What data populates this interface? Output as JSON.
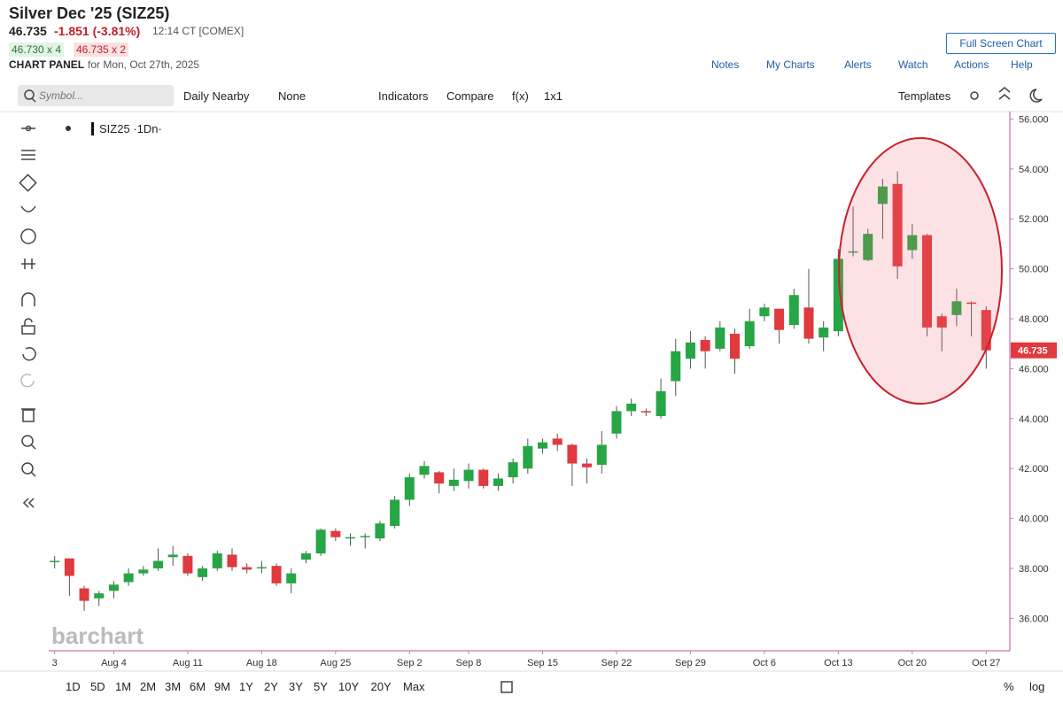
{
  "header": {
    "title": "Silver Dec '25 (SIZ25)",
    "price": "46.735",
    "change": "-1.851 (-3.81%)",
    "time": "12:14 CT [COMEX]",
    "bid": "46.730 x 4",
    "ask": "46.735 x 2",
    "panel": "CHART PANEL",
    "date": "for Mon, Oct 27th, 2025",
    "full_screen": "Full Screen Chart",
    "links": [
      "Notes",
      "My Charts",
      "Alerts",
      "Watch",
      "Actions",
      "Help"
    ]
  },
  "toolbar": {
    "search": "Symbol...",
    "items": [
      "Daily Nearby",
      "None",
      "Indicators",
      "Compare",
      "f(x)",
      "1x1"
    ],
    "templates": "Templates"
  },
  "chart_data": {
    "type": "candlestick",
    "legend": "SIZ25 ·1Dn·",
    "watermark": "barchart",
    "up_color": "#26a644",
    "down_color": "#e0393e",
    "x": [
      0,
      1,
      2,
      3,
      4,
      5,
      6,
      7,
      8,
      9,
      10,
      11,
      12,
      13,
      14,
      15,
      16,
      17,
      18,
      19,
      20,
      21,
      22,
      23,
      24,
      25,
      26,
      27,
      28,
      29,
      30,
      31,
      32,
      33,
      34,
      35,
      36,
      37,
      38,
      39,
      40,
      41,
      42,
      43,
      44,
      45,
      46,
      47,
      48,
      49,
      50,
      51,
      52,
      53,
      54,
      55,
      56,
      57,
      58,
      59,
      60,
      61,
      62,
      63
    ],
    "open": [
      38.3,
      38.4,
      37.2,
      36.8,
      37.1,
      37.45,
      37.8,
      38.0,
      38.45,
      38.5,
      37.65,
      38.0,
      38.55,
      38.05,
      38.05,
      38.1,
      37.4,
      38.35,
      38.6,
      39.5,
      39.2,
      39.3,
      39.2,
      39.7,
      40.75,
      41.75,
      41.85,
      41.3,
      41.5,
      41.95,
      41.3,
      41.65,
      42.0,
      42.8,
      43.2,
      42.95,
      42.2,
      42.15,
      43.4,
      44.3,
      44.3,
      44.1,
      45.5,
      46.4,
      47.15,
      46.8,
      47.4,
      46.9,
      48.1,
      48.4,
      47.75,
      48.45,
      47.25,
      47.5,
      50.65,
      50.35,
      52.6,
      53.4,
      50.75,
      51.35,
      48.1,
      48.15,
      48.65,
      48.35
    ],
    "high": [
      38.5,
      38.4,
      37.3,
      37.1,
      37.5,
      38.0,
      38.1,
      38.8,
      38.9,
      38.6,
      38.1,
      38.7,
      38.8,
      38.2,
      38.3,
      38.2,
      38.0,
      38.7,
      39.6,
      39.6,
      39.4,
      39.4,
      39.9,
      40.9,
      41.8,
      42.3,
      41.9,
      42.0,
      42.2,
      42.0,
      41.8,
      42.4,
      43.2,
      43.2,
      43.4,
      43.0,
      42.4,
      43.5,
      44.5,
      44.8,
      44.4,
      45.6,
      47.2,
      47.5,
      47.3,
      47.9,
      47.6,
      48.4,
      48.6,
      48.4,
      49.2,
      50.0,
      47.9,
      50.8,
      52.5,
      51.6,
      53.6,
      53.9,
      51.8,
      51.4,
      48.2,
      49.2,
      48.7,
      48.5
    ],
    "low": [
      38.0,
      36.9,
      36.3,
      36.5,
      36.8,
      37.3,
      37.7,
      37.9,
      38.1,
      37.7,
      37.5,
      37.9,
      37.9,
      37.8,
      37.8,
      37.3,
      37.0,
      38.2,
      38.5,
      39.1,
      38.9,
      38.8,
      39.1,
      39.6,
      40.5,
      41.6,
      41.0,
      41.1,
      41.2,
      41.2,
      41.1,
      41.4,
      41.8,
      42.6,
      42.7,
      41.3,
      41.4,
      41.8,
      43.2,
      44.1,
      44.1,
      44.0,
      44.9,
      46.0,
      46.0,
      46.7,
      45.8,
      46.8,
      47.9,
      47.0,
      47.6,
      47.0,
      46.7,
      47.3,
      50.5,
      50.3,
      51.2,
      49.6,
      50.4,
      47.3,
      46.7,
      47.7,
      47.3,
      46.0
    ],
    "close": [
      38.3,
      37.7,
      36.7,
      37.0,
      37.35,
      37.8,
      37.95,
      38.3,
      38.55,
      37.8,
      38.0,
      38.6,
      38.05,
      37.95,
      38.05,
      37.4,
      37.8,
      38.6,
      39.55,
      39.25,
      39.25,
      39.3,
      39.8,
      40.75,
      41.65,
      42.1,
      41.4,
      41.55,
      41.95,
      41.3,
      41.6,
      42.25,
      42.9,
      43.05,
      42.95,
      42.2,
      42.05,
      42.95,
      44.3,
      44.6,
      44.25,
      45.1,
      46.7,
      47.05,
      46.7,
      47.65,
      46.4,
      47.9,
      48.45,
      47.55,
      48.95,
      47.2,
      47.65,
      50.4,
      50.7,
      51.4,
      53.3,
      50.1,
      51.35,
      47.65,
      47.65,
      48.7,
      48.6,
      46.735
    ],
    "last_price": 46.735,
    "xlim": [
      -0.4,
      64.6
    ],
    "xticks": [
      {
        "value": 0,
        "label": "3"
      },
      {
        "value": 4,
        "label": "Aug 4"
      },
      {
        "value": 9,
        "label": "Aug 11"
      },
      {
        "value": 14,
        "label": "Aug 18"
      },
      {
        "value": 19,
        "label": "Aug 25"
      },
      {
        "value": 24,
        "label": "Sep 2"
      },
      {
        "value": 28,
        "label": "Sep 8"
      },
      {
        "value": 33,
        "label": "Sep 15"
      },
      {
        "value": 38,
        "label": "Sep 22"
      },
      {
        "value": 43,
        "label": "Sep 29"
      },
      {
        "value": 48,
        "label": "Oct 6"
      },
      {
        "value": 53,
        "label": "Oct 13"
      },
      {
        "value": 58,
        "label": "Oct 20"
      },
      {
        "value": 63,
        "label": "Oct 27"
      }
    ],
    "ylim": [
      34.7,
      56.3
    ],
    "yticks": [
      {
        "value": 36,
        "label": "36.000"
      },
      {
        "value": 38,
        "label": "38.000"
      },
      {
        "value": 40,
        "label": "40.000"
      },
      {
        "value": 42,
        "label": "42.000"
      },
      {
        "value": 44,
        "label": "44.000"
      },
      {
        "value": 46,
        "label": "46.000"
      },
      {
        "value": 48,
        "label": "48.000"
      },
      {
        "value": 50,
        "label": "50.000"
      },
      {
        "value": 52,
        "label": "52.000"
      },
      {
        "value": 54,
        "label": "54.000"
      },
      {
        "value": 56,
        "label": "56.000"
      }
    ]
  },
  "footer": {
    "periods": [
      "1D",
      "5D",
      "1M",
      "2M",
      "3M",
      "6M",
      "9M",
      "1Y",
      "2Y",
      "3Y",
      "5Y",
      "10Y",
      "20Y",
      "Max"
    ],
    "percent": "%",
    "log": "log"
  }
}
